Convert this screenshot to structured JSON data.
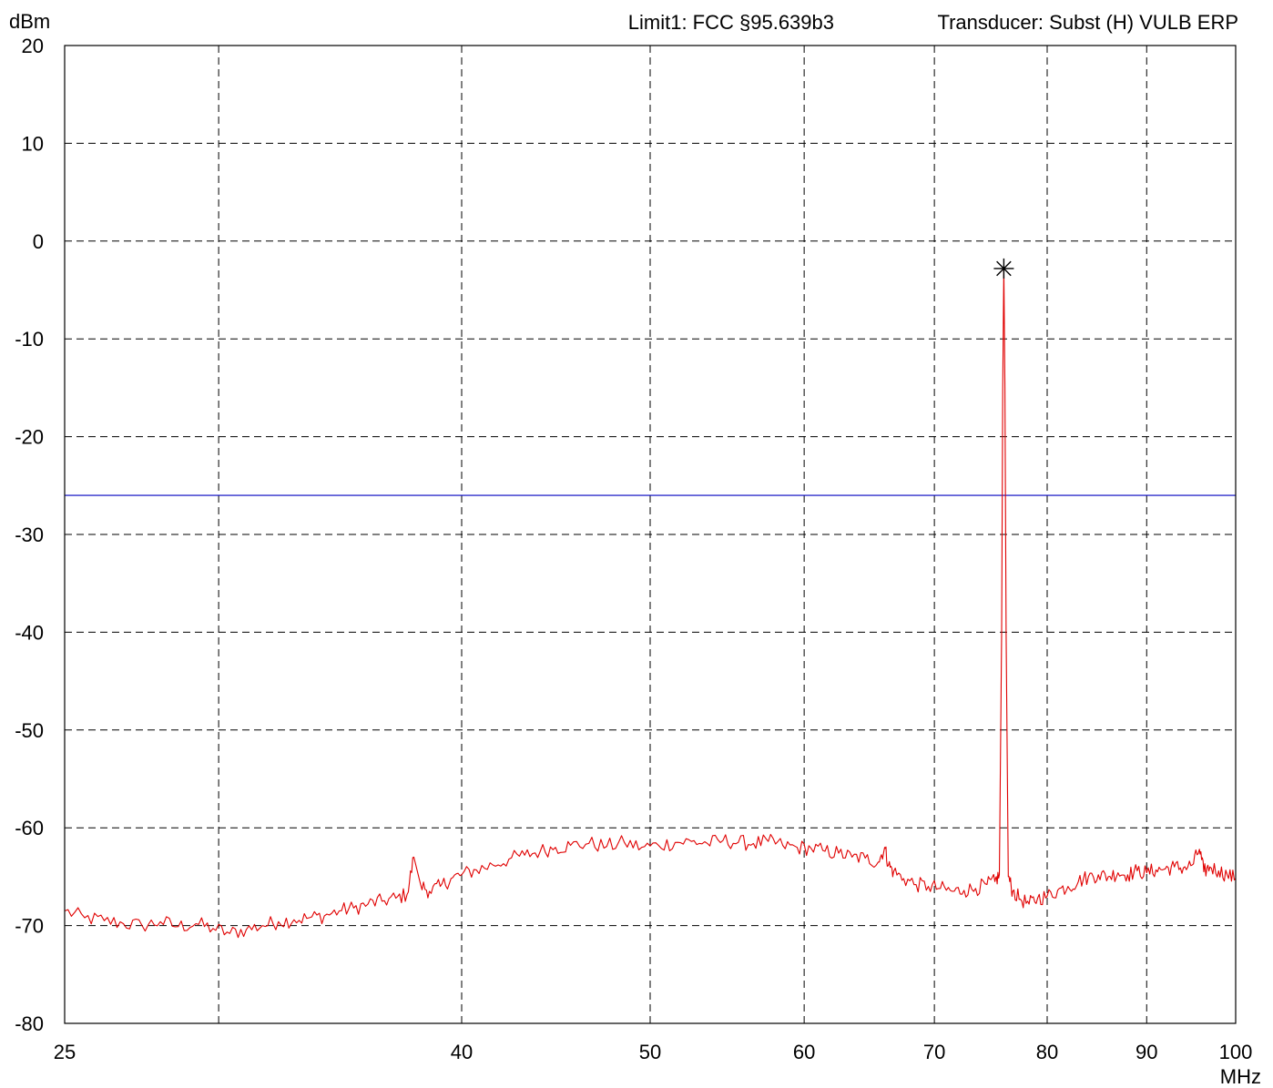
{
  "header": {
    "limit_text": "Limit1: FCC §95.639b3",
    "transducer_text": "Transducer: Subst (H) VULB ERP"
  },
  "chart_data": {
    "type": "line",
    "title": "",
    "xlabel": "MHz",
    "ylabel": "dBm",
    "x_scale": "log",
    "xlim": [
      25,
      100
    ],
    "ylim": [
      -80,
      20
    ],
    "grid": true,
    "x_ticks": [
      25,
      40,
      50,
      60,
      70,
      80,
      90,
      100
    ],
    "x_tick_labels": [
      "25",
      "40",
      "50",
      "60",
      "70",
      "80",
      "90",
      "100"
    ],
    "x_grid_extra": [
      30
    ],
    "y_ticks": [
      20,
      10,
      0,
      -10,
      -20,
      -30,
      -40,
      -50,
      -60,
      -70,
      -80
    ],
    "y_tick_labels": [
      "20",
      "10",
      "0",
      "-10",
      "-20",
      "-30",
      "-40",
      "-50",
      "-60",
      "-70",
      "-80"
    ],
    "colors": {
      "trace": "#e00000",
      "limit": "#0000c0",
      "grid": "#000000",
      "marker": "#000000"
    },
    "limit_line": {
      "y": -26
    },
    "marker": {
      "x": 76.0,
      "y": -2.8
    },
    "series": [
      {
        "x": [
          25.0,
          25.6,
          26.2,
          26.8,
          27.4,
          28.0,
          28.6,
          29.2,
          29.8,
          30.4,
          31.0,
          31.6,
          32.2,
          32.8,
          33.4,
          34.0,
          34.6,
          35.2,
          35.8,
          36.4,
          37.0,
          37.5,
          37.8,
          38.1,
          38.5,
          39.0,
          39.5,
          40.0,
          40.7,
          41.5,
          42.3,
          43.1,
          43.9,
          44.7,
          45.5,
          46.5,
          47.5,
          48.5,
          49.5,
          50.5,
          51.5,
          52.5,
          53.5,
          54.5,
          55.5,
          56.5,
          57.5,
          58.5,
          59.5,
          60.5,
          61.5,
          62.5,
          63.5,
          64.5,
          65.5,
          66.0,
          66.3,
          66.7,
          67.5,
          68.5,
          69.5,
          70.5,
          71.5,
          72.5,
          73.5,
          74.5,
          75.2,
          75.6,
          75.8,
          75.9,
          76.0,
          76.1,
          76.2,
          76.4,
          76.8,
          77.5,
          78.3,
          79.1,
          80.0,
          81.0,
          82.0,
          83.0,
          84.0,
          85.0,
          86.0,
          87.0,
          88.0,
          89.0,
          90.0,
          91.0,
          92.0,
          93.0,
          94.0,
          95.0,
          95.8,
          96.3,
          97.0,
          98.0,
          99.0,
          100.0
        ],
        "y": [
          -68.5,
          -69.2,
          -69.5,
          -69.8,
          -70.0,
          -69.6,
          -70.1,
          -69.8,
          -70.3,
          -70.8,
          -70.4,
          -70.0,
          -69.6,
          -69.4,
          -69.2,
          -69.0,
          -68.5,
          -68.2,
          -67.8,
          -67.5,
          -67.2,
          -66.8,
          -63.0,
          -65.8,
          -66.5,
          -66.0,
          -65.2,
          -64.8,
          -64.3,
          -63.8,
          -63.2,
          -62.8,
          -62.4,
          -62.0,
          -61.8,
          -61.6,
          -61.9,
          -61.5,
          -62.0,
          -61.8,
          -61.5,
          -61.4,
          -61.6,
          -61.3,
          -61.5,
          -61.6,
          -61.4,
          -61.8,
          -62.0,
          -62.1,
          -62.4,
          -62.6,
          -63.0,
          -63.1,
          -63.5,
          -62.0,
          -63.8,
          -64.5,
          -65.2,
          -65.8,
          -66.0,
          -66.2,
          -66.5,
          -66.4,
          -66.2,
          -65.8,
          -65.5,
          -64.8,
          -40.0,
          -15.0,
          -2.8,
          -15.0,
          -40.0,
          -65.0,
          -66.5,
          -67.3,
          -67.8,
          -67.2,
          -67.0,
          -66.4,
          -66.0,
          -65.5,
          -65.0,
          -64.8,
          -65.0,
          -64.6,
          -64.8,
          -64.4,
          -64.6,
          -64.3,
          -64.2,
          -64.0,
          -64.1,
          -63.8,
          -62.2,
          -64.5,
          -64.0,
          -64.4,
          -64.8,
          -65.2
        ]
      }
    ]
  }
}
